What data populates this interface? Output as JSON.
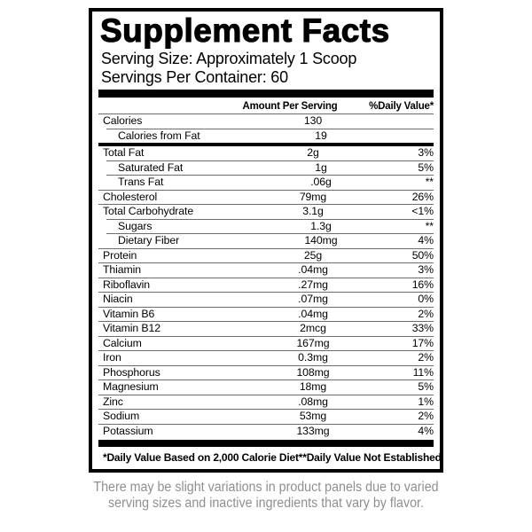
{
  "panel": {
    "title": "Supplement Facts",
    "serving_size": "Serving Size: Approximately 1 Scoop",
    "servings_per_container": "Servings Per Container: 60",
    "columns": {
      "amount": "Amount Per Serving",
      "dv": "%Daily Value*"
    },
    "rows": [
      {
        "name": "Calories",
        "amount": "130",
        "dv": "",
        "indent": false
      },
      {
        "name": "Calories from Fat",
        "amount": "19",
        "dv": "",
        "indent": true,
        "thick_after": true
      },
      {
        "name": "Total Fat",
        "amount": "2g",
        "dv": "3%",
        "indent": false
      },
      {
        "name": "Saturated Fat",
        "amount": "1g",
        "dv": "5%",
        "indent": true
      },
      {
        "name": "Trans Fat",
        "amount": ".06g",
        "dv": "**",
        "indent": true
      },
      {
        "name": "Cholesterol",
        "amount": "79mg",
        "dv": "26%",
        "indent": false
      },
      {
        "name": "Total Carbohydrate",
        "amount": "3.1g",
        "dv": "<1%",
        "indent": false
      },
      {
        "name": "Sugars",
        "amount": "1.3g",
        "dv": "**",
        "indent": true
      },
      {
        "name": "Dietary Fiber",
        "amount": "140mg",
        "dv": "4%",
        "indent": true
      },
      {
        "name": "Protein",
        "amount": "25g",
        "dv": "50%",
        "indent": false
      },
      {
        "name": "Thiamin",
        "amount": ".04mg",
        "dv": "3%",
        "indent": false
      },
      {
        "name": "Riboflavin",
        "amount": ".27mg",
        "dv": "16%",
        "indent": false
      },
      {
        "name": "Niacin",
        "amount": ".07mg",
        "dv": "0%",
        "indent": false
      },
      {
        "name": "Vitamin B6",
        "amount": ".04mg",
        "dv": "2%",
        "indent": false
      },
      {
        "name": "Vitamin B12",
        "amount": "2mcg",
        "dv": "33%",
        "indent": false
      },
      {
        "name": "Calcium",
        "amount": "167mg",
        "dv": "17%",
        "indent": false
      },
      {
        "name": "Iron",
        "amount": "0.3mg",
        "dv": "2%",
        "indent": false
      },
      {
        "name": "Phosphorus",
        "amount": "108mg",
        "dv": "11%",
        "indent": false
      },
      {
        "name": "Magnesium",
        "amount": "18mg",
        "dv": "5%",
        "indent": false
      },
      {
        "name": "Zinc",
        "amount": ".08mg",
        "dv": "1%",
        "indent": false
      },
      {
        "name": "Sodium",
        "amount": "53mg",
        "dv": "2%",
        "indent": false
      },
      {
        "name": "Potassium",
        "amount": "133mg",
        "dv": "4%",
        "indent": false
      }
    ],
    "footnotes": {
      "left": "*Daily Value Based on 2,000 Calorie Diet",
      "right": "**Daily Value Not Established"
    }
  },
  "disclaimer": {
    "line1": "There may be slight variations in product panels due to varied",
    "line2": "serving sizes and inactive ingredients that vary by flavor."
  },
  "colors": {
    "text": "#000000",
    "rule": "#6e6e6e",
    "bar": "#000000",
    "disclaimer_text": "#8f8f8f"
  }
}
